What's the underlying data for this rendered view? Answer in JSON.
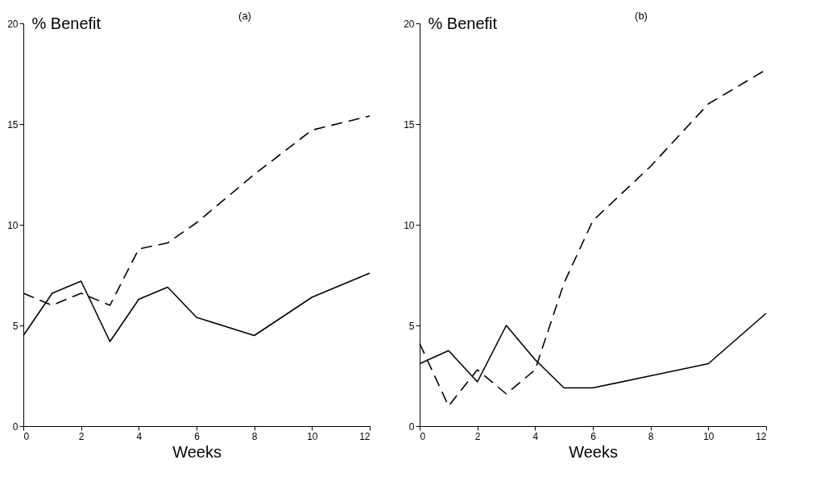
{
  "chart_data": [
    {
      "type": "line",
      "title": "(a)",
      "xlabel": "Weeks",
      "ylabel": "% Benefit",
      "x": [
        0,
        1,
        2,
        3,
        4,
        5,
        6,
        8,
        10,
        12
      ],
      "xlim": [
        0,
        12
      ],
      "xticks": [
        0,
        2,
        4,
        6,
        8,
        10,
        12
      ],
      "ylim": [
        0,
        20
      ],
      "yticks": [
        0,
        5,
        10,
        15,
        20
      ],
      "grid": false,
      "series": [
        {
          "color": "#000000",
          "line_style": "solid",
          "values": [
            4.5,
            6.6,
            7.2,
            4.2,
            6.3,
            6.9,
            5.4,
            4.5,
            6.4,
            7.6
          ]
        },
        {
          "color": "#000000",
          "line_style": "dashed",
          "values": [
            6.6,
            6.0,
            6.6,
            6.0,
            8.8,
            9.1,
            10.1,
            12.5,
            14.7,
            15.4
          ]
        }
      ]
    },
    {
      "type": "line",
      "title": "(b)",
      "xlabel": "Weeks",
      "ylabel": "% Benefit",
      "x": [
        0,
        1,
        2,
        3,
        4,
        5,
        6,
        8,
        10,
        12
      ],
      "xlim": [
        0,
        12
      ],
      "xticks": [
        0,
        2,
        4,
        6,
        8,
        10,
        12
      ],
      "ylim": [
        0,
        20
      ],
      "yticks": [
        0,
        5,
        10,
        15,
        20
      ],
      "grid": false,
      "series": [
        {
          "color": "#000000",
          "line_style": "solid",
          "values": [
            3.1,
            3.75,
            2.2,
            5.0,
            3.3,
            1.9,
            1.9,
            2.5,
            3.1,
            5.6
          ]
        },
        {
          "color": "#000000",
          "line_style": "dashed",
          "values": [
            4.1,
            1.0,
            2.8,
            1.6,
            2.8,
            7.1,
            10.2,
            12.9,
            16.0,
            17.7
          ]
        }
      ]
    }
  ]
}
